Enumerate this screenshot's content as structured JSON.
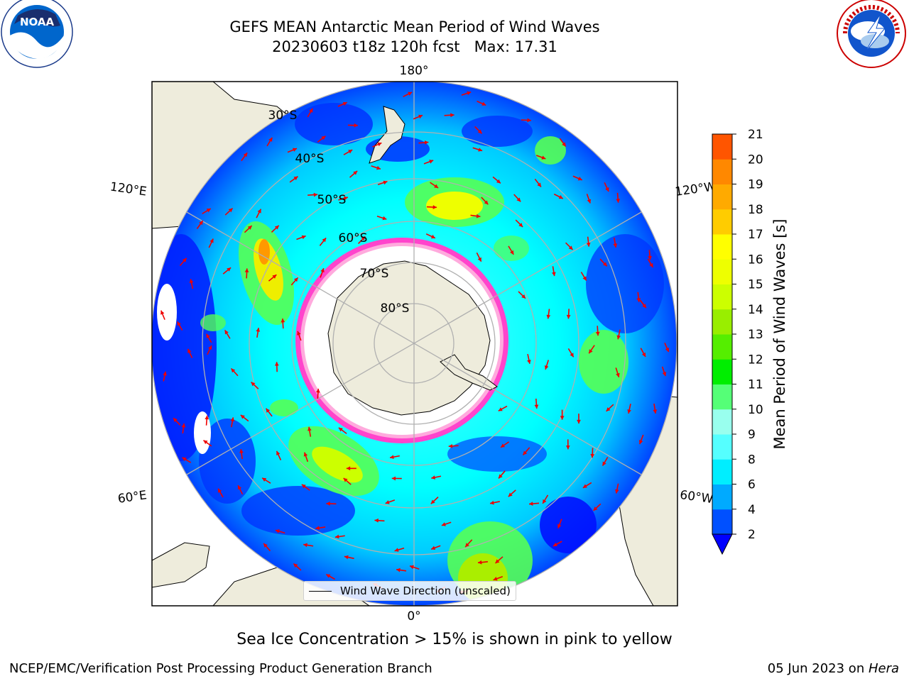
{
  "header": {
    "title_line1": "GEFS MEAN Antarctic Mean Period of Wind Waves",
    "title_line2": "20230603 t18z 120h fcst   Max: 17.31"
  },
  "logos": {
    "left": "NOAA",
    "left_ring_text": "NATIONAL OCEANIC AND ATMOSPHERIC ADMINISTRATION · U.S. DEPARTMENT OF COMMERCE",
    "right_ring_text": "NATIONAL WEATHER SERVICE"
  },
  "map": {
    "longitude_labels": [
      "180°",
      "120°E",
      "120°W",
      "60°E",
      "60°W",
      "0°"
    ],
    "latitude_labels": [
      "30°S",
      "40°S",
      "50°S",
      "60°S",
      "70°S",
      "80°S"
    ],
    "legend_label": "Wind Wave Direction (unscaled)",
    "colors": {
      "land": "#eeecdc",
      "ocean_low": "#0000ff",
      "ocean_mid": "#00ffff",
      "ice_edge": "#ff44cc",
      "arrows": "#ee0000",
      "grid": "#b0b0b0"
    }
  },
  "colorbar": {
    "label": "Mean Period of Wind Waves [s]",
    "ticks": [
      "2",
      "4",
      "6",
      "8",
      "9",
      "10",
      "11",
      "12",
      "13",
      "14",
      "15",
      "16",
      "17",
      "18",
      "19",
      "20",
      "21"
    ],
    "colors": [
      "#0050ff",
      "#00aaff",
      "#00eeff",
      "#55ffff",
      "#99ffee",
      "#55ff77",
      "#00ee00",
      "#55ee00",
      "#99ee00",
      "#ccff00",
      "#eeff00",
      "#ffff00",
      "#ffcc00",
      "#ffaa00",
      "#ff8800",
      "#ff5500",
      "#ff2200",
      "#ff0000"
    ],
    "extend_color": "#0000ff"
  },
  "caption": "Sea Ice Concentration > 15% is shown in pink to yellow",
  "footer": {
    "left": "NCEP/EMC/Verification Post Processing Product Generation Branch",
    "right_prefix": "05 Jun 2023 on ",
    "right_host": "Hera"
  }
}
